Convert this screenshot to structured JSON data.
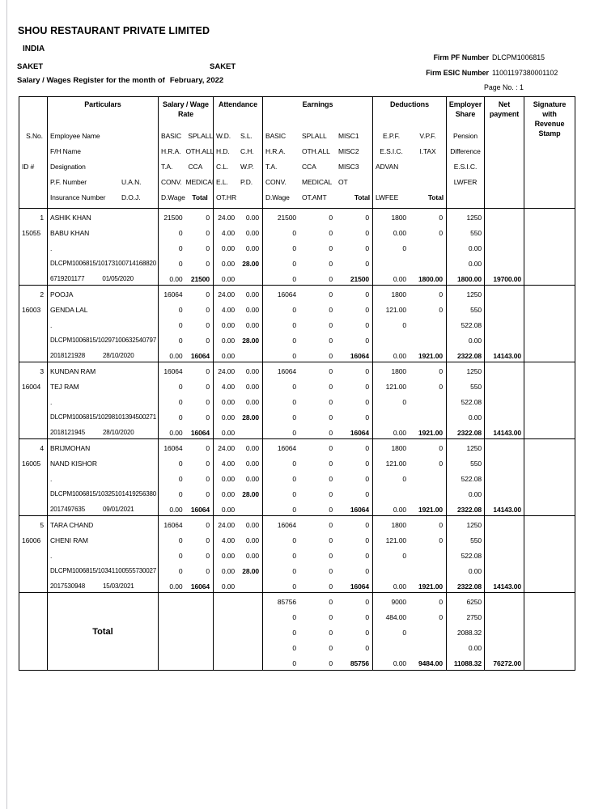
{
  "page": {
    "company": "SHOU RESTAURANT PRIVATE LIMITED",
    "country": "INDIA",
    "branch_left": "SAKET",
    "branch_right": "SAKET",
    "register_label": "Salary / Wages Register for the month of",
    "register_month": "February, 2022",
    "firm_pf_label": "Firm PF Number",
    "firm_pf_value": "DLCPM1006815",
    "firm_esic_label": "Firm ESIC Number",
    "firm_esic_value": "11001197380001102",
    "page_no": "Page No. : 1"
  },
  "table": {
    "header": {
      "sno": "S.No.",
      "id": "ID #",
      "titles": {
        "particulars": "Particulars",
        "rate": "Salary / Wage\nRate",
        "attendance": "Attendance",
        "earnings": "Earnings",
        "deductions": "Deductions",
        "employer_share": "Employer\nShare",
        "net_payment": "Net\npayment",
        "signature": "Signature\nwith\nRevenue\nStamp"
      },
      "particulars": [
        [
          "Employee Name",
          ""
        ],
        [
          "F/H Name",
          ""
        ],
        [
          "Designation",
          ""
        ],
        [
          "P.F. Number",
          "U.A.N."
        ],
        [
          "Insurance Number",
          "D.O.J."
        ]
      ],
      "rate": [
        [
          "BASIC",
          "SPLALL"
        ],
        [
          "H.R.A.",
          "OTH.ALL"
        ],
        [
          "T.A.",
          "CCA"
        ],
        [
          "CONV.",
          "MEDICAL"
        ],
        [
          "D.Wage",
          "Total"
        ]
      ],
      "attendance": [
        [
          "W.D.",
          "S.L."
        ],
        [
          "H.D.",
          "C.H."
        ],
        [
          "C.L.",
          "W.P."
        ],
        [
          "E.L.",
          "P.D."
        ],
        [
          "OT.HR",
          ""
        ]
      ],
      "earnings": [
        [
          "BASIC",
          "SPLALL",
          "MISC1"
        ],
        [
          "H.R.A.",
          "OTH.ALL",
          "MISC2"
        ],
        [
          "T.A.",
          "CCA",
          "MISC3"
        ],
        [
          "CONV.",
          "MEDICAL",
          "OT"
        ],
        [
          "D.Wage",
          "OT.AMT",
          "Total"
        ]
      ],
      "deductions": [
        [
          "E.P.F.",
          "V.P.F."
        ],
        [
          "E.S.I.C.",
          "I.TAX"
        ],
        [
          "ADVAN",
          ""
        ],
        [
          "",
          ""
        ],
        [
          "LWFEE",
          "Total"
        ]
      ],
      "employer_share": [
        "Pension",
        "Difference",
        "E.S.I.C.",
        "LWFER",
        ""
      ]
    },
    "rows": [
      {
        "sno": "1",
        "id": "15055",
        "employee_name": "ASHIK KHAN",
        "fh_name": "BABU KHAN",
        "designation": ".",
        "pf_number": "DLCPM1006815/10173",
        "uan": "100714168820",
        "insurance_number": "6719201177",
        "doj": "01/05/2020",
        "rate": [
          [
            "21500",
            "0"
          ],
          [
            "0",
            "0"
          ],
          [
            "0",
            "0"
          ],
          [
            "0",
            "0"
          ],
          [
            "0.00",
            "21500"
          ]
        ],
        "attendance": [
          [
            "24.00",
            "0.00"
          ],
          [
            "4.00",
            "0.00"
          ],
          [
            "0.00",
            "0.00"
          ],
          [
            "0.00",
            "28.00"
          ],
          [
            "0.00",
            ""
          ]
        ],
        "earnings": [
          [
            "21500",
            "0",
            "0"
          ],
          [
            "0",
            "0",
            "0"
          ],
          [
            "0",
            "0",
            "0"
          ],
          [
            "0",
            "0",
            "0"
          ],
          [
            "0",
            "0",
            "21500"
          ]
        ],
        "deductions": [
          [
            "1800",
            "0"
          ],
          [
            "0.00",
            "0"
          ],
          [
            "0",
            ""
          ],
          [
            "",
            ""
          ],
          [
            "0.00",
            "1800.00"
          ]
        ],
        "employer_share": [
          "1250",
          "550",
          "0.00",
          "0.00",
          "1800.00"
        ],
        "net_payment": "19700.00"
      },
      {
        "sno": "2",
        "id": "16003",
        "employee_name": "POOJA",
        "fh_name": "GENDA LAL",
        "designation": ".",
        "pf_number": "DLCPM1006815/10297",
        "uan": "100632540797",
        "insurance_number": "2018121928",
        "doj": "28/10/2020",
        "rate": [
          [
            "16064",
            "0"
          ],
          [
            "0",
            "0"
          ],
          [
            "0",
            "0"
          ],
          [
            "0",
            "0"
          ],
          [
            "0.00",
            "16064"
          ]
        ],
        "attendance": [
          [
            "24.00",
            "0.00"
          ],
          [
            "4.00",
            "0.00"
          ],
          [
            "0.00",
            "0.00"
          ],
          [
            "0.00",
            "28.00"
          ],
          [
            "0.00",
            ""
          ]
        ],
        "earnings": [
          [
            "16064",
            "0",
            "0"
          ],
          [
            "0",
            "0",
            "0"
          ],
          [
            "0",
            "0",
            "0"
          ],
          [
            "0",
            "0",
            "0"
          ],
          [
            "0",
            "0",
            "16064"
          ]
        ],
        "deductions": [
          [
            "1800",
            "0"
          ],
          [
            "121.00",
            "0"
          ],
          [
            "0",
            ""
          ],
          [
            "",
            ""
          ],
          [
            "0.00",
            "1921.00"
          ]
        ],
        "employer_share": [
          "1250",
          "550",
          "522.08",
          "0.00",
          "2322.08"
        ],
        "net_payment": "14143.00"
      },
      {
        "sno": "3",
        "id": "16004",
        "employee_name": "KUNDAN RAM",
        "fh_name": "TEJ RAM",
        "designation": ".",
        "pf_number": "DLCPM1006815/10298",
        "uan": "101394500271",
        "insurance_number": "2018121945",
        "doj": "28/10/2020",
        "rate": [
          [
            "16064",
            "0"
          ],
          [
            "0",
            "0"
          ],
          [
            "0",
            "0"
          ],
          [
            "0",
            "0"
          ],
          [
            "0.00",
            "16064"
          ]
        ],
        "attendance": [
          [
            "24.00",
            "0.00"
          ],
          [
            "4.00",
            "0.00"
          ],
          [
            "0.00",
            "0.00"
          ],
          [
            "0.00",
            "28.00"
          ],
          [
            "0.00",
            ""
          ]
        ],
        "earnings": [
          [
            "16064",
            "0",
            "0"
          ],
          [
            "0",
            "0",
            "0"
          ],
          [
            "0",
            "0",
            "0"
          ],
          [
            "0",
            "0",
            "0"
          ],
          [
            "0",
            "0",
            "16064"
          ]
        ],
        "deductions": [
          [
            "1800",
            "0"
          ],
          [
            "121.00",
            "0"
          ],
          [
            "0",
            ""
          ],
          [
            "",
            ""
          ],
          [
            "0.00",
            "1921.00"
          ]
        ],
        "employer_share": [
          "1250",
          "550",
          "522.08",
          "0.00",
          "2322.08"
        ],
        "net_payment": "14143.00"
      },
      {
        "sno": "4",
        "id": "16005",
        "employee_name": "BRIJMOHAN",
        "fh_name": "NAND KISHOR",
        "designation": ".",
        "pf_number": "DLCPM1006815/10325",
        "uan": "101419256380",
        "insurance_number": "2017497635",
        "doj": "09/01/2021",
        "rate": [
          [
            "16064",
            "0"
          ],
          [
            "0",
            "0"
          ],
          [
            "0",
            "0"
          ],
          [
            "0",
            "0"
          ],
          [
            "0.00",
            "16064"
          ]
        ],
        "attendance": [
          [
            "24.00",
            "0.00"
          ],
          [
            "4.00",
            "0.00"
          ],
          [
            "0.00",
            "0.00"
          ],
          [
            "0.00",
            "28.00"
          ],
          [
            "0.00",
            ""
          ]
        ],
        "earnings": [
          [
            "16064",
            "0",
            "0"
          ],
          [
            "0",
            "0",
            "0"
          ],
          [
            "0",
            "0",
            "0"
          ],
          [
            "0",
            "0",
            "0"
          ],
          [
            "0",
            "0",
            "16064"
          ]
        ],
        "deductions": [
          [
            "1800",
            "0"
          ],
          [
            "121.00",
            "0"
          ],
          [
            "0",
            ""
          ],
          [
            "",
            ""
          ],
          [
            "0.00",
            "1921.00"
          ]
        ],
        "employer_share": [
          "1250",
          "550",
          "522.08",
          "0.00",
          "2322.08"
        ],
        "net_payment": "14143.00"
      },
      {
        "sno": "5",
        "id": "16006",
        "employee_name": "TARA CHAND",
        "fh_name": "CHENI RAM",
        "designation": ".",
        "pf_number": "DLCPM1006815/10341",
        "uan": "100555730027",
        "insurance_number": "2017530948",
        "doj": "15/03/2021",
        "rate": [
          [
            "16064",
            "0"
          ],
          [
            "0",
            "0"
          ],
          [
            "0",
            "0"
          ],
          [
            "0",
            "0"
          ],
          [
            "0.00",
            "16064"
          ]
        ],
        "attendance": [
          [
            "24.00",
            "0.00"
          ],
          [
            "4.00",
            "0.00"
          ],
          [
            "0.00",
            "0.00"
          ],
          [
            "0.00",
            "28.00"
          ],
          [
            "0.00",
            ""
          ]
        ],
        "earnings": [
          [
            "16064",
            "0",
            "0"
          ],
          [
            "0",
            "0",
            "0"
          ],
          [
            "0",
            "0",
            "0"
          ],
          [
            "0",
            "0",
            "0"
          ],
          [
            "0",
            "0",
            "16064"
          ]
        ],
        "deductions": [
          [
            "1800",
            "0"
          ],
          [
            "121.00",
            "0"
          ],
          [
            "0",
            ""
          ],
          [
            "",
            ""
          ],
          [
            "0.00",
            "1921.00"
          ]
        ],
        "employer_share": [
          "1250",
          "550",
          "522.08",
          "0.00",
          "2322.08"
        ],
        "net_payment": "14143.00"
      }
    ],
    "total": {
      "label": "Total",
      "earnings": [
        [
          "85756",
          "0",
          "0"
        ],
        [
          "0",
          "0",
          "0"
        ],
        [
          "0",
          "0",
          "0"
        ],
        [
          "0",
          "0",
          "0"
        ],
        [
          "0",
          "0",
          "85756"
        ]
      ],
      "deductions": [
        [
          "9000",
          "0"
        ],
        [
          "484.00",
          "0"
        ],
        [
          "0",
          ""
        ],
        [
          "",
          ""
        ],
        [
          "0.00",
          "9484.00"
        ]
      ],
      "employer_share": [
        "6250",
        "2750",
        "2088.32",
        "0.00",
        "11088.32"
      ],
      "net_payment": "76272.00"
    }
  }
}
